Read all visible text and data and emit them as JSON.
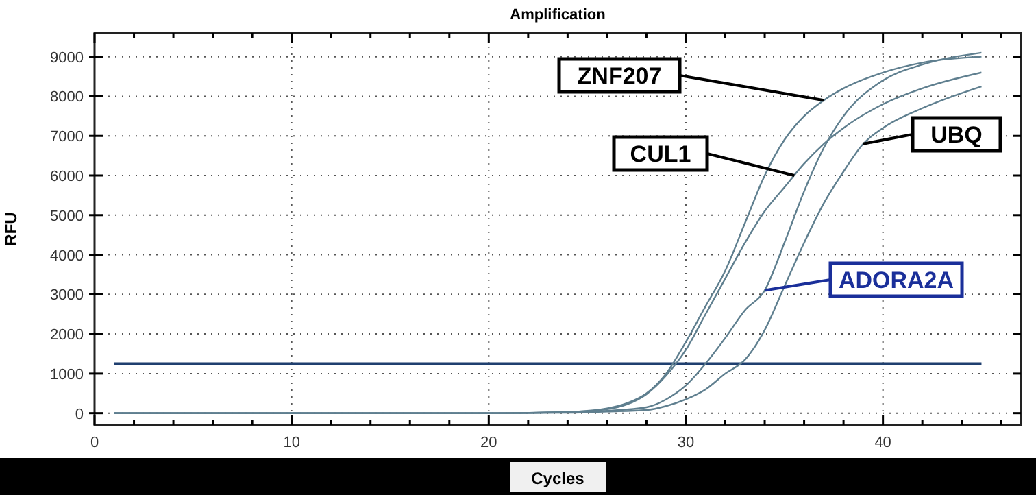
{
  "chart_data": {
    "type": "line",
    "title": "Amplification",
    "xlabel": "Cycles",
    "ylabel": "RFU",
    "xlim": [
      0,
      47
    ],
    "ylim": [
      -300,
      9600
    ],
    "xticks": [
      0,
      {
        "value": 2,
        "label": null
      },
      {
        "value": 4,
        "label": null
      },
      {
        "value": 6,
        "label": null
      },
      {
        "value": 8,
        "label": null
      },
      10,
      {
        "value": 12,
        "label": null
      },
      {
        "value": 14,
        "label": null
      },
      {
        "value": 16,
        "label": null
      },
      {
        "value": 18,
        "label": null
      },
      20,
      {
        "value": 22,
        "label": null
      },
      {
        "value": 24,
        "label": null
      },
      {
        "value": 26,
        "label": null
      },
      {
        "value": 28,
        "label": null
      },
      30,
      {
        "value": 32,
        "label": null
      },
      {
        "value": 34,
        "label": null
      },
      {
        "value": 36,
        "label": null
      },
      {
        "value": 38,
        "label": null
      },
      40,
      {
        "value": 42,
        "label": null
      },
      {
        "value": 44,
        "label": null
      },
      {
        "value": 46,
        "label": null
      }
    ],
    "yticks": [
      0,
      1000,
      2000,
      3000,
      4000,
      5000,
      6000,
      7000,
      8000,
      9000
    ],
    "grid": true,
    "marker": "none",
    "line_style": "solid",
    "annotations": [
      {
        "text": "ZNF207",
        "x": 37,
        "y": 7900
      },
      {
        "text": "CUL1",
        "x": 35.5,
        "y": 6000
      },
      {
        "text": "UBQ",
        "x": 39,
        "y": 6800
      },
      {
        "text": "ADORA2A",
        "x": 34,
        "y": 3100
      }
    ],
    "ref_lines": [
      {
        "axis": "y",
        "value": 1250,
        "color": "#1f3f6f"
      }
    ],
    "series": [
      {
        "color": "#5f7f8f",
        "x": [
          1,
          20,
          24,
          26,
          27,
          28,
          29,
          30,
          31,
          32,
          33,
          34,
          35,
          36,
          37,
          38,
          40,
          42,
          45
        ],
        "values": [
          0,
          0,
          30,
          120,
          250,
          500,
          1000,
          1800,
          2700,
          3600,
          4800,
          6000,
          6900,
          7500,
          7900,
          8200,
          8600,
          8850,
          9000
        ]
      },
      {
        "color": "#5f7f8f",
        "x": [
          1,
          20,
          24,
          26,
          27,
          28,
          29,
          30,
          31,
          32,
          33,
          34,
          35,
          36,
          37,
          38,
          40,
          42,
          45
        ],
        "values": [
          0,
          0,
          30,
          100,
          220,
          480,
          950,
          1600,
          2500,
          3400,
          4300,
          5100,
          5700,
          6300,
          6800,
          7200,
          7800,
          8200,
          8600
        ]
      },
      {
        "color": "#5f7f8f",
        "x": [
          1,
          20,
          24,
          26,
          28,
          29,
          30,
          31,
          32,
          33,
          34,
          35,
          36,
          37,
          38,
          39,
          40,
          42,
          45
        ],
        "values": [
          0,
          0,
          10,
          40,
          80,
          180,
          350,
          600,
          1000,
          1350,
          2100,
          3200,
          4300,
          5300,
          6100,
          6800,
          7200,
          7700,
          8250
        ]
      },
      {
        "color": "#5f7f8f",
        "x": [
          1,
          20,
          24,
          26,
          28,
          29,
          30,
          31,
          32,
          33,
          34,
          35,
          36,
          37,
          38,
          40,
          42,
          45
        ],
        "values": [
          0,
          0,
          20,
          60,
          150,
          350,
          700,
          1250,
          1900,
          2600,
          3100,
          4300,
          5600,
          6700,
          7500,
          8400,
          8800,
          9100
        ]
      }
    ]
  }
}
